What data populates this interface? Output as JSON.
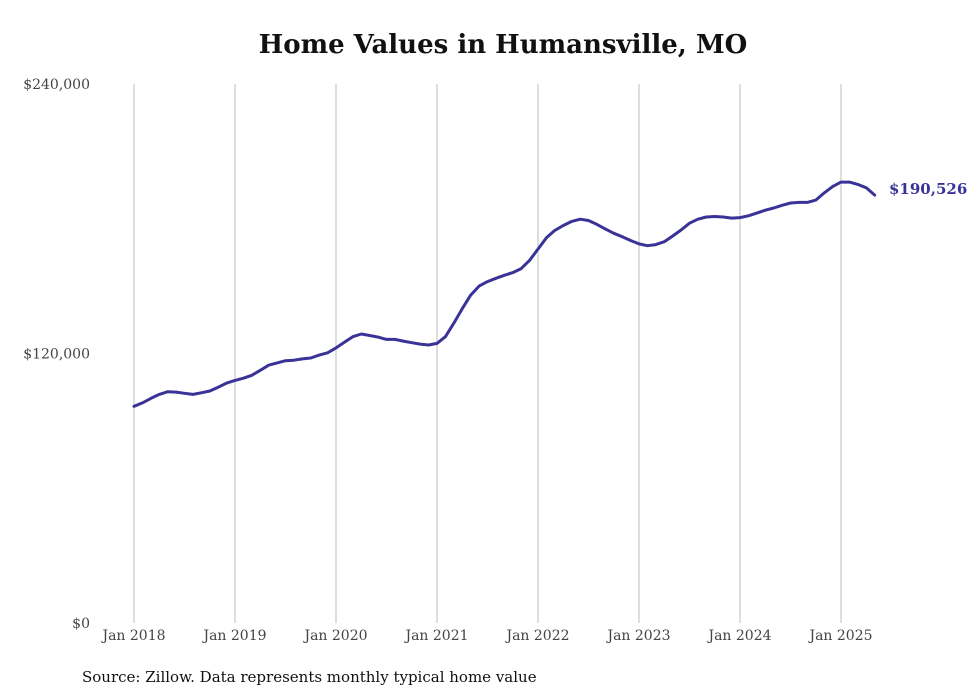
{
  "chart_data": {
    "type": "line",
    "title": "Home Values in Humansville, MO",
    "source": "Source: Zillow. Data represents monthly typical home value",
    "xlabel": "",
    "ylabel": "",
    "ylim": [
      0,
      240000
    ],
    "y_ticks": [
      {
        "value": 0,
        "label": "$0"
      },
      {
        "value": 120000,
        "label": "$120,000"
      },
      {
        "value": 240000,
        "label": "$240,000"
      }
    ],
    "x_ticks": [
      {
        "date": "2018-01",
        "label": "Jan 2018"
      },
      {
        "date": "2019-01",
        "label": "Jan 2019"
      },
      {
        "date": "2020-01",
        "label": "Jan 2020"
      },
      {
        "date": "2021-01",
        "label": "Jan 2021"
      },
      {
        "date": "2022-01",
        "label": "Jan 2022"
      },
      {
        "date": "2023-01",
        "label": "Jan 2023"
      },
      {
        "date": "2024-01",
        "label": "Jan 2024"
      },
      {
        "date": "2025-01",
        "label": "Jan 2025"
      }
    ],
    "grid": {
      "vertical": true,
      "horizontal": false
    },
    "line_color": "#3a3397",
    "end_label": "$190,526",
    "series": [
      {
        "points": [
          [
            "2018-01",
            96500
          ],
          [
            "2018-02",
            98000
          ],
          [
            "2018-03",
            100000
          ],
          [
            "2018-04",
            101800
          ],
          [
            "2018-05",
            103000
          ],
          [
            "2018-06",
            102800
          ],
          [
            "2018-07",
            102300
          ],
          [
            "2018-08",
            101800
          ],
          [
            "2018-09",
            102500
          ],
          [
            "2018-10",
            103300
          ],
          [
            "2018-11",
            105000
          ],
          [
            "2018-12",
            106800
          ],
          [
            "2019-01",
            108000
          ],
          [
            "2019-02",
            109000
          ],
          [
            "2019-03",
            110300
          ],
          [
            "2019-04",
            112500
          ],
          [
            "2019-05",
            114800
          ],
          [
            "2019-06",
            115800
          ],
          [
            "2019-07",
            116800
          ],
          [
            "2019-08",
            117000
          ],
          [
            "2019-09",
            117600
          ],
          [
            "2019-10",
            118000
          ],
          [
            "2019-11",
            119300
          ],
          [
            "2019-12",
            120300
          ],
          [
            "2020-01",
            122500
          ],
          [
            "2020-02",
            125000
          ],
          [
            "2020-03",
            127500
          ],
          [
            "2020-04",
            128700
          ],
          [
            "2020-05",
            128000
          ],
          [
            "2020-06",
            127300
          ],
          [
            "2020-07",
            126300
          ],
          [
            "2020-08",
            126300
          ],
          [
            "2020-09",
            125500
          ],
          [
            "2020-10",
            124800
          ],
          [
            "2020-11",
            124200
          ],
          [
            "2020-12",
            123800
          ],
          [
            "2021-01",
            124500
          ],
          [
            "2021-02",
            127500
          ],
          [
            "2021-03",
            133500
          ],
          [
            "2021-04",
            140000
          ],
          [
            "2021-05",
            146000
          ],
          [
            "2021-06",
            150000
          ],
          [
            "2021-07",
            152000
          ],
          [
            "2021-08",
            153500
          ],
          [
            "2021-09",
            154800
          ],
          [
            "2021-10",
            156000
          ],
          [
            "2021-11",
            157800
          ],
          [
            "2021-12",
            161500
          ],
          [
            "2022-01",
            166500
          ],
          [
            "2022-02",
            171500
          ],
          [
            "2022-03",
            174800
          ],
          [
            "2022-04",
            177000
          ],
          [
            "2022-05",
            178800
          ],
          [
            "2022-06",
            179800
          ],
          [
            "2022-07",
            179200
          ],
          [
            "2022-08",
            177500
          ],
          [
            "2022-09",
            175500
          ],
          [
            "2022-10",
            173500
          ],
          [
            "2022-11",
            172000
          ],
          [
            "2022-12",
            170300
          ],
          [
            "2023-01",
            168800
          ],
          [
            "2023-02",
            168000
          ],
          [
            "2023-03",
            168500
          ],
          [
            "2023-04",
            169800
          ],
          [
            "2023-05",
            172300
          ],
          [
            "2023-06",
            175000
          ],
          [
            "2023-07",
            178000
          ],
          [
            "2023-08",
            179800
          ],
          [
            "2023-09",
            180800
          ],
          [
            "2023-10",
            181000
          ],
          [
            "2023-11",
            180800
          ],
          [
            "2023-12",
            180300
          ],
          [
            "2024-01",
            180500
          ],
          [
            "2024-02",
            181300
          ],
          [
            "2024-03",
            182500
          ],
          [
            "2024-04",
            183800
          ],
          [
            "2024-05",
            184800
          ],
          [
            "2024-06",
            186000
          ],
          [
            "2024-07",
            187000
          ],
          [
            "2024-08",
            187300
          ],
          [
            "2024-09",
            187300
          ],
          [
            "2024-10",
            188300
          ],
          [
            "2024-11",
            191500
          ],
          [
            "2024-12",
            194300
          ],
          [
            "2025-01",
            196300
          ],
          [
            "2025-02",
            196300
          ],
          [
            "2025-03",
            195300
          ],
          [
            "2025-04",
            193800
          ],
          [
            "2025-05",
            190526
          ]
        ]
      }
    ]
  }
}
